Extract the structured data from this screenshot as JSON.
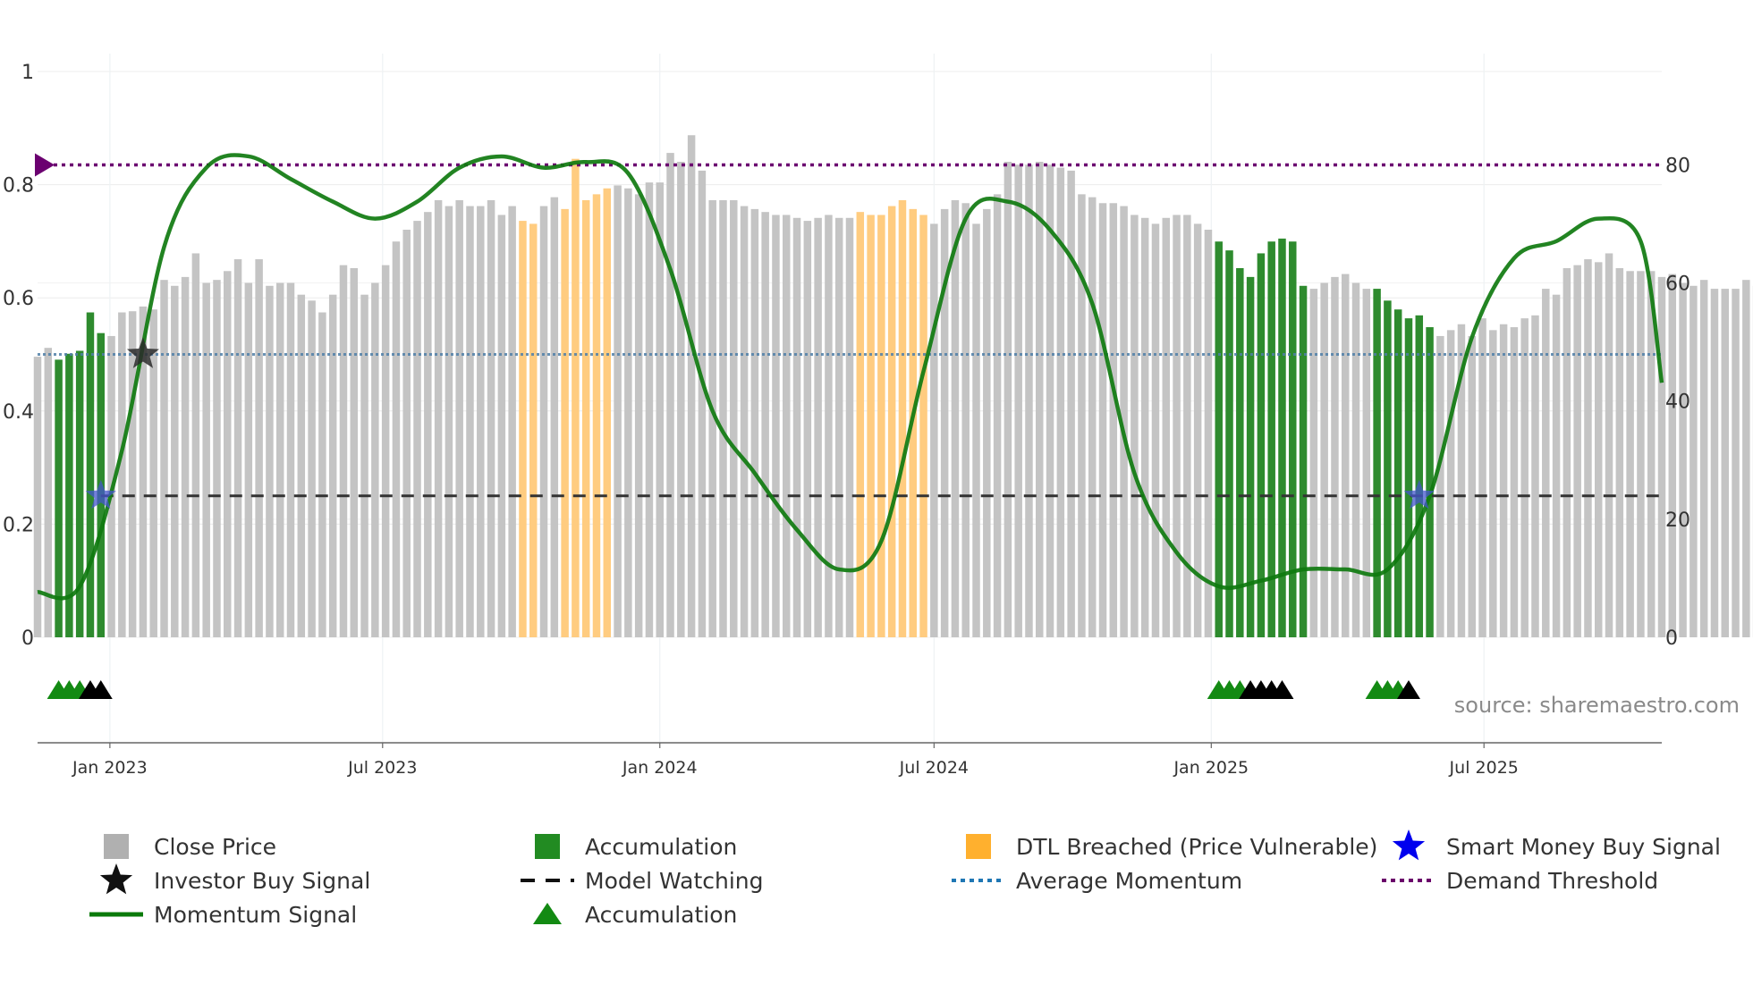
{
  "chart_data": {
    "type": "bar",
    "title": "",
    "source": "source: sharemaestro.com",
    "left_axis": {
      "range": [
        0,
        1
      ],
      "ticks": [
        0,
        0.2,
        0.4,
        0.6,
        0.8,
        1
      ],
      "tick_labels": [
        "0",
        "0.2",
        "0.4",
        "0.6",
        "0.8",
        "1"
      ]
    },
    "right_axis": {
      "range": [
        0,
        92
      ],
      "ticks": [
        0,
        20,
        40,
        60,
        80
      ],
      "tick_labels": [
        "0",
        "20",
        "40",
        "60",
        "80"
      ]
    },
    "x_axis": {
      "start": "2022-11-14",
      "end": "2025-10-27",
      "ticks": [
        {
          "date": "2023-01-01",
          "label": "Jan 2023"
        },
        {
          "date": "2023-07-01",
          "label": "Jul 2023"
        },
        {
          "date": "2024-01-01",
          "label": "Jan 2024"
        },
        {
          "date": "2024-07-01",
          "label": "Jul 2024"
        },
        {
          "date": "2025-01-01",
          "label": "Jan 2025"
        },
        {
          "date": "2025-07-01",
          "label": "Jul 2025"
        }
      ]
    },
    "close_price": {
      "unit": "weekly",
      "values": [
        47.5,
        49,
        47,
        48,
        48.5,
        55,
        51.5,
        51,
        55,
        55.2,
        56,
        55.5,
        60.5,
        59.5,
        61,
        65,
        60,
        60.5,
        62,
        64,
        60,
        64,
        59.5,
        60,
        60,
        58,
        57,
        55,
        58,
        63,
        62.5,
        58,
        60,
        63,
        67,
        69,
        70.5,
        72,
        74,
        73,
        74,
        73,
        73,
        74,
        71.5,
        73,
        70.5,
        70,
        73,
        74.5,
        72.5,
        81,
        74,
        75,
        76,
        76.5,
        76,
        75,
        77,
        77,
        82,
        80.5,
        85,
        79,
        74,
        74,
        74,
        73,
        72.5,
        72,
        71.5,
        71.5,
        71,
        70.5,
        71,
        71.5,
        71,
        71,
        72,
        71.5,
        71.5,
        73,
        74,
        72.5,
        71.5,
        70,
        72.5,
        74,
        73.5,
        70,
        72.5,
        75,
        80.5,
        80,
        80,
        80.5,
        80,
        79.5,
        79,
        75,
        74.5,
        73.5,
        73.5,
        73,
        71.5,
        71,
        70,
        71,
        71.5,
        71.5,
        70,
        69,
        67,
        65.5,
        62.5,
        61,
        65,
        67,
        67.5,
        67,
        59.5,
        59,
        60,
        61,
        61.5,
        60,
        59,
        59,
        57,
        55.5,
        54,
        54.5,
        52.5,
        51,
        52,
        53,
        51,
        54,
        52,
        53,
        52.5,
        54,
        54.5,
        59,
        58,
        62.5,
        63,
        64,
        63.5,
        65,
        62.5,
        62,
        62,
        62,
        61,
        61.5,
        60,
        59.5,
        60.5,
        59,
        59,
        59,
        60.5,
        59.5,
        59.5,
        60,
        61,
        63,
        61.5,
        60.5,
        63
      ]
    },
    "accumulation_bars": [
      {
        "start": "2022-11-28",
        "end": "2022-12-26"
      },
      {
        "start": "2025-01-06",
        "end": "2025-03-03"
      },
      {
        "start": "2025-04-21",
        "end": "2025-05-26"
      }
    ],
    "dtl_breached_bars": [
      {
        "start": "2023-10-02",
        "end": "2023-10-09"
      },
      {
        "start": "2023-10-30",
        "end": "2023-11-27"
      },
      {
        "start": "2024-05-13",
        "end": "2024-06-24"
      }
    ],
    "momentum_signal": {
      "points": [
        [
          "2022-11-14",
          0.08
        ],
        [
          "2022-12-12",
          0.09
        ],
        [
          "2023-01-09",
          0.33
        ],
        [
          "2023-02-06",
          0.69
        ],
        [
          "2023-03-06",
          0.83
        ],
        [
          "2023-04-03",
          0.85
        ],
        [
          "2023-05-01",
          0.81
        ],
        [
          "2023-05-29",
          0.77
        ],
        [
          "2023-06-26",
          0.74
        ],
        [
          "2023-07-24",
          0.77
        ],
        [
          "2023-08-21",
          0.83
        ],
        [
          "2023-09-18",
          0.85
        ],
        [
          "2023-10-16",
          0.83
        ],
        [
          "2023-11-13",
          0.84
        ],
        [
          "2023-12-11",
          0.82
        ],
        [
          "2024-01-08",
          0.65
        ],
        [
          "2024-02-05",
          0.4
        ],
        [
          "2024-03-04",
          0.29
        ],
        [
          "2024-04-01",
          0.19
        ],
        [
          "2024-04-29",
          0.12
        ],
        [
          "2024-05-27",
          0.17
        ],
        [
          "2024-06-24",
          0.47
        ],
        [
          "2024-07-22",
          0.74
        ],
        [
          "2024-08-19",
          0.77
        ],
        [
          "2024-09-16",
          0.72
        ],
        [
          "2024-10-14",
          0.59
        ],
        [
          "2024-11-11",
          0.29
        ],
        [
          "2024-12-09",
          0.15
        ],
        [
          "2025-01-06",
          0.09
        ],
        [
          "2025-02-03",
          0.1
        ],
        [
          "2025-03-03",
          0.12
        ],
        [
          "2025-03-31",
          0.12
        ],
        [
          "2025-04-28",
          0.12
        ],
        [
          "2025-05-26",
          0.25
        ],
        [
          "2025-06-23",
          0.53
        ],
        [
          "2025-07-21",
          0.67
        ],
        [
          "2025-08-18",
          0.7
        ],
        [
          "2025-09-15",
          0.74
        ],
        [
          "2025-10-13",
          0.7
        ],
        [
          "2025-10-27",
          0.45
        ]
      ]
    },
    "average_momentum": 0.5,
    "demand_threshold": 0.835,
    "model_watching": {
      "value": 0.25,
      "start": "2022-12-26",
      "end": "2025-10-27"
    },
    "investor_buy_signals": [
      {
        "date": "2023-01-23",
        "value": 0.5
      }
    ],
    "smart_money_buy_signals": [
      {
        "date": "2022-12-26",
        "value": 0.25
      },
      {
        "date": "2025-05-19",
        "value": 0.25
      }
    ],
    "triangle_markers": [
      {
        "date": "2022-11-28",
        "color": "green"
      },
      {
        "date": "2022-12-05",
        "color": "green"
      },
      {
        "date": "2022-12-12",
        "color": "green"
      },
      {
        "date": "2022-12-19",
        "color": "black"
      },
      {
        "date": "2022-12-26",
        "color": "black"
      },
      {
        "date": "2025-01-06",
        "color": "green"
      },
      {
        "date": "2025-01-13",
        "color": "green"
      },
      {
        "date": "2025-01-20",
        "color": "green"
      },
      {
        "date": "2025-01-27",
        "color": "black"
      },
      {
        "date": "2025-02-03",
        "color": "black"
      },
      {
        "date": "2025-02-10",
        "color": "black"
      },
      {
        "date": "2025-02-17",
        "color": "black"
      },
      {
        "date": "2025-04-21",
        "color": "green"
      },
      {
        "date": "2025-04-28",
        "color": "green"
      },
      {
        "date": "2025-05-05",
        "color": "green"
      },
      {
        "date": "2025-05-12",
        "color": "black"
      }
    ],
    "legend": [
      {
        "label": "Close Price",
        "kind": "square",
        "color": "#b0b0b0"
      },
      {
        "label": "Accumulation",
        "kind": "square",
        "color": "#228b22"
      },
      {
        "label": "DTL Breached (Price Vulnerable)",
        "kind": "square",
        "color": "#ffb02e"
      },
      {
        "label": "Smart Money Buy Signal",
        "kind": "star",
        "color": "#0000ee"
      },
      {
        "label": "Investor Buy Signal",
        "kind": "star",
        "color": "#111111"
      },
      {
        "label": "Model Watching",
        "kind": "dash",
        "color": "#111111"
      },
      {
        "label": "Average Momentum",
        "kind": "dot",
        "color": "#1f77b4"
      },
      {
        "label": "Demand Threshold",
        "kind": "dot",
        "color": "#6a006a"
      },
      {
        "label": "Momentum Signal",
        "kind": "line",
        "color": "#0a7a0a"
      },
      {
        "label": "Accumulation",
        "kind": "triangle",
        "color": "#138a13"
      }
    ],
    "colors": {
      "close": "#c4c4c4",
      "accumulation": "#2e8b2e",
      "dtl": "#ffcc80",
      "momentum": "#0f7a0f",
      "average": "#4f7fa8",
      "demand": "#6b0070",
      "watching": "#333333",
      "investor_star": "#2b2b2b",
      "smart_star": "#4455cc",
      "tri_green": "#138a13",
      "tri_black": "#000000"
    }
  }
}
